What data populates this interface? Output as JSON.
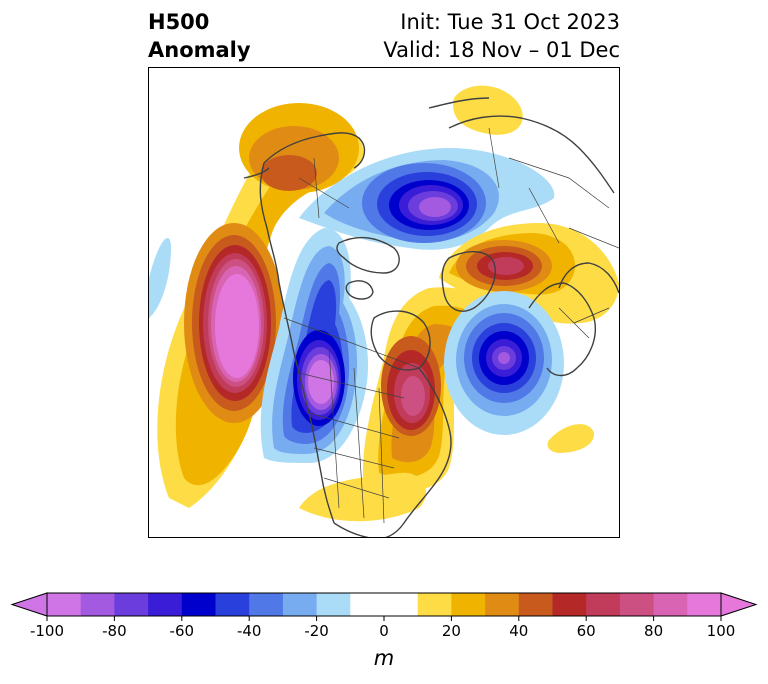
{
  "title": {
    "line1": "H500",
    "line2": "Anomaly",
    "init": "Init: Tue 31 Oct 2023",
    "valid": "Valid: 18 Nov – 01 Dec"
  },
  "colorbar": {
    "units": "m",
    "min": -100,
    "max": 100,
    "tick_values": [
      -100,
      -80,
      -60,
      -40,
      -20,
      0,
      20,
      40,
      60,
      80,
      100
    ],
    "tick_labels": [
      "-100",
      "-80",
      "-60",
      "-40",
      "-20",
      "0",
      "20",
      "40",
      "60",
      "80",
      "100"
    ],
    "extend": "both",
    "levels": [
      {
        "from": -100,
        "to": -90,
        "color": "#d075e6"
      },
      {
        "from": -90,
        "to": -80,
        "color": "#a35ae0"
      },
      {
        "from": -80,
        "to": -70,
        "color": "#6a3ddc"
      },
      {
        "from": -70,
        "to": -60,
        "color": "#3a1dd6"
      },
      {
        "from": -60,
        "to": -50,
        "color": "#0000cc"
      },
      {
        "from": -50,
        "to": -40,
        "color": "#2a40dc"
      },
      {
        "from": -40,
        "to": -30,
        "color": "#5078e6"
      },
      {
        "from": -30,
        "to": -20,
        "color": "#78acf0"
      },
      {
        "from": -20,
        "to": -10,
        "color": "#aadcf8"
      },
      {
        "from": -10,
        "to": 10,
        "color": "#ffffff"
      },
      {
        "from": 10,
        "to": 20,
        "color": "#fddc46"
      },
      {
        "from": 20,
        "to": 30,
        "color": "#f0b400"
      },
      {
        "from": 30,
        "to": 40,
        "color": "#e08c14"
      },
      {
        "from": 40,
        "to": 50,
        "color": "#c85a1e"
      },
      {
        "from": 50,
        "to": 60,
        "color": "#b42828"
      },
      {
        "from": 60,
        "to": 70,
        "color": "#c03c5a"
      },
      {
        "from": 70,
        "to": 80,
        "color": "#cc5082"
      },
      {
        "from": 80,
        "to": 90,
        "color": "#da64b4"
      },
      {
        "from": 90,
        "to": 100,
        "color": "#e678dc"
      }
    ],
    "under_color": "#d075e6",
    "over_color": "#e678dc"
  }
}
